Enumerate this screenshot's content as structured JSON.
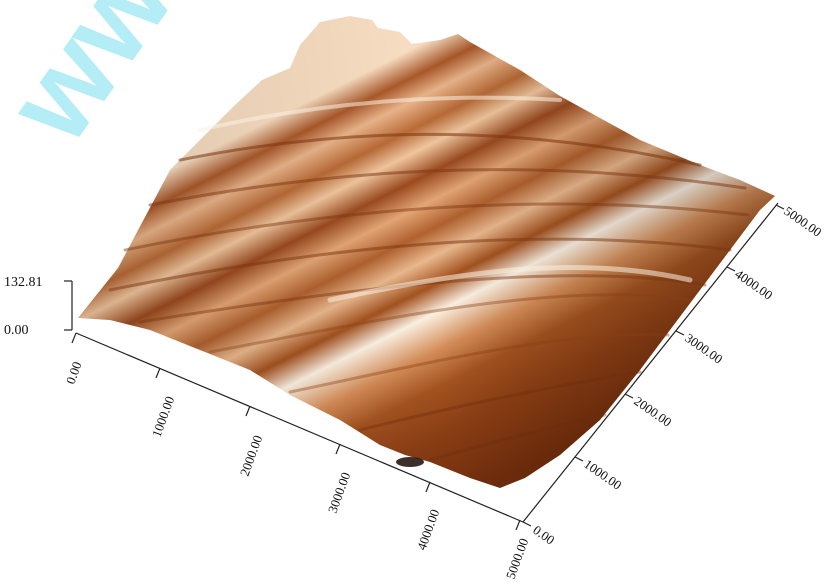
{
  "image": {
    "kind": "afm-3d-surface-render",
    "colors": {
      "surface_light": "#fbf0e2",
      "surface_mid": "#c87a42",
      "surface_dark": "#7a3310",
      "watermark": "#a8eaf4",
      "axis": "#222222"
    }
  },
  "watermark": {
    "text": "www"
  },
  "axes": {
    "z": {
      "max_label": "132.81",
      "min_label": "0.00"
    },
    "x": {
      "ticks": [
        "0.00",
        "1000.00",
        "2000.00",
        "3000.00",
        "4000.00",
        "5000.00"
      ]
    },
    "y": {
      "ticks": [
        "0.00",
        "1000.00",
        "2000.00",
        "3000.00",
        "4000.00",
        "5000.00"
      ]
    }
  }
}
